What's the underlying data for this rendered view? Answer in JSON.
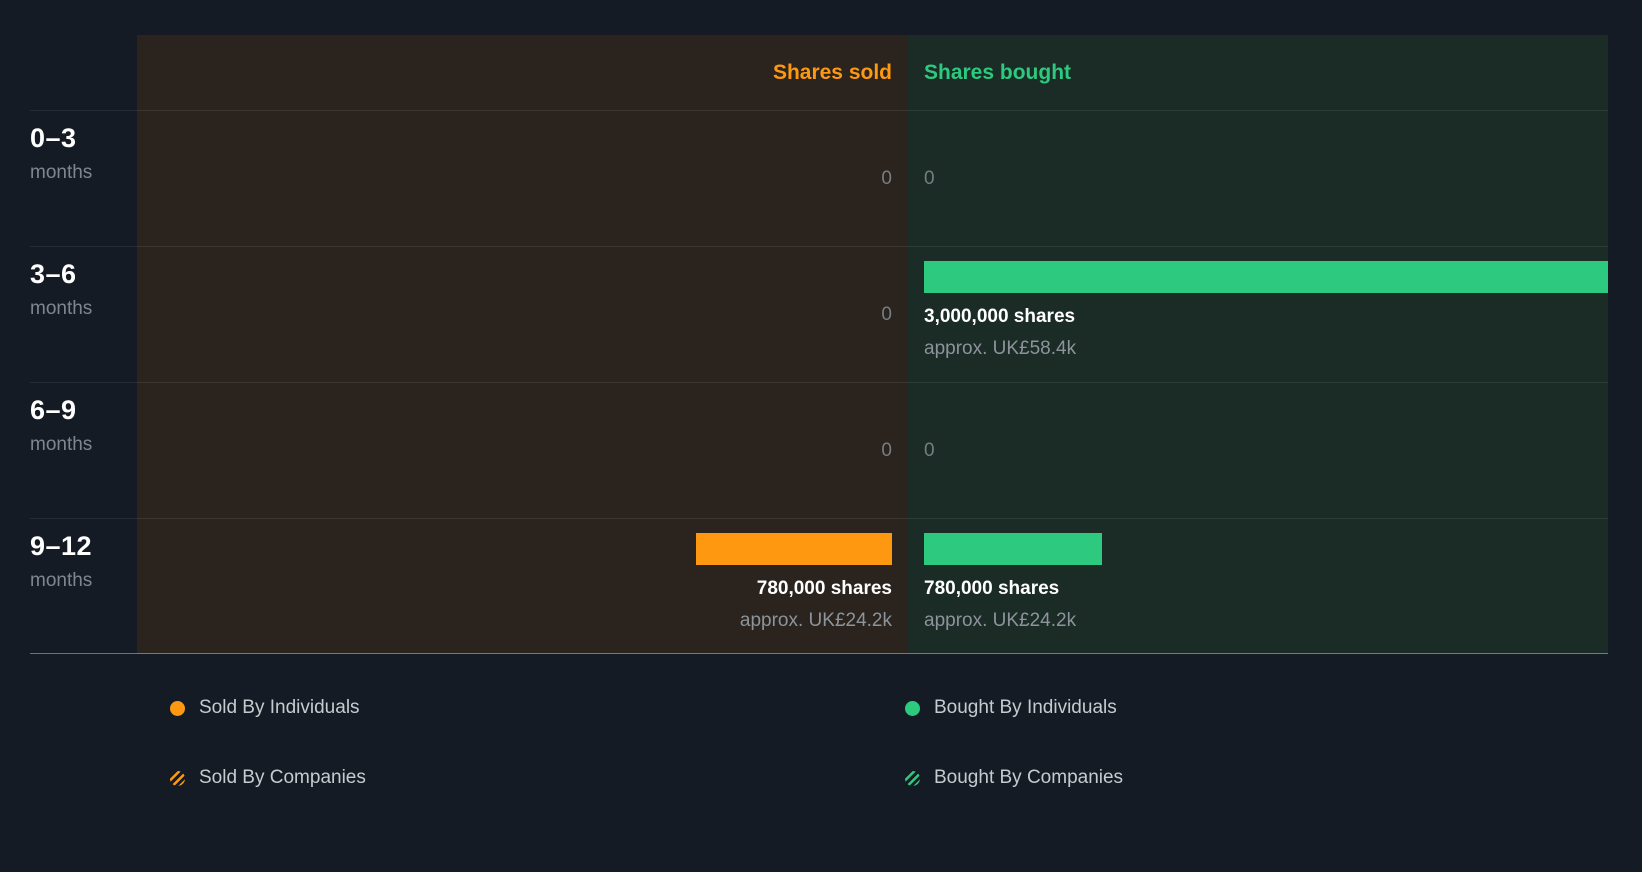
{
  "colors": {
    "background": "#151b24",
    "sold_column_bg": "#2b241e",
    "bought_column_bg": "#1b2b26",
    "sold_accent": "#ff9811",
    "bought_accent": "#2dc97e",
    "text_primary": "#ffffff",
    "text_muted": "#8d939b"
  },
  "chart_data": {
    "type": "bar",
    "column_headers": [
      "Shares sold",
      "Shares bought"
    ],
    "categories": [
      "0–3 months",
      "3–6 months",
      "6–9 months",
      "9–12 months"
    ],
    "series": [
      {
        "name": "Shares sold",
        "color": "#ff9811",
        "values": [
          0,
          0,
          0,
          780000
        ],
        "approx_values": [
          null,
          null,
          null,
          "UK£24.2k"
        ]
      },
      {
        "name": "Shares bought",
        "color": "#2dc97e",
        "values": [
          0,
          3000000,
          0,
          780000
        ],
        "approx_values": [
          null,
          "UK£58.4k",
          null,
          "UK£24.2k"
        ]
      }
    ],
    "max_shares": 3000000,
    "legend_position": "bottom"
  },
  "header": {
    "sold_label": "Shares sold",
    "bought_label": "Shares bought"
  },
  "rows": [
    {
      "period": "0–3",
      "unit": "months",
      "sold": {
        "shares": 0,
        "label": "0"
      },
      "bought": {
        "shares": 0,
        "label": "0"
      }
    },
    {
      "period": "3–6",
      "unit": "months",
      "sold": {
        "shares": 0,
        "label": "0"
      },
      "bought": {
        "shares": 3000000,
        "label": "3,000,000 shares",
        "approx": "approx. UK£58.4k"
      }
    },
    {
      "period": "6–9",
      "unit": "months",
      "sold": {
        "shares": 0,
        "label": "0"
      },
      "bought": {
        "shares": 0,
        "label": "0"
      }
    },
    {
      "period": "9–12",
      "unit": "months",
      "sold": {
        "shares": 780000,
        "label": "780,000 shares",
        "approx": "approx. UK£24.2k"
      },
      "bought": {
        "shares": 780000,
        "label": "780,000 shares",
        "approx": "approx. UK£24.2k"
      }
    }
  ],
  "legend": [
    {
      "label": "Sold By Individuals",
      "color": "#ff9811",
      "style": "solid"
    },
    {
      "label": "Sold By Companies",
      "color": "#ff9811",
      "style": "hatched"
    },
    {
      "label": "Bought By Individuals",
      "color": "#2dc97e",
      "style": "solid"
    },
    {
      "label": "Bought By Companies",
      "color": "#2dc97e",
      "style": "hatched"
    }
  ]
}
